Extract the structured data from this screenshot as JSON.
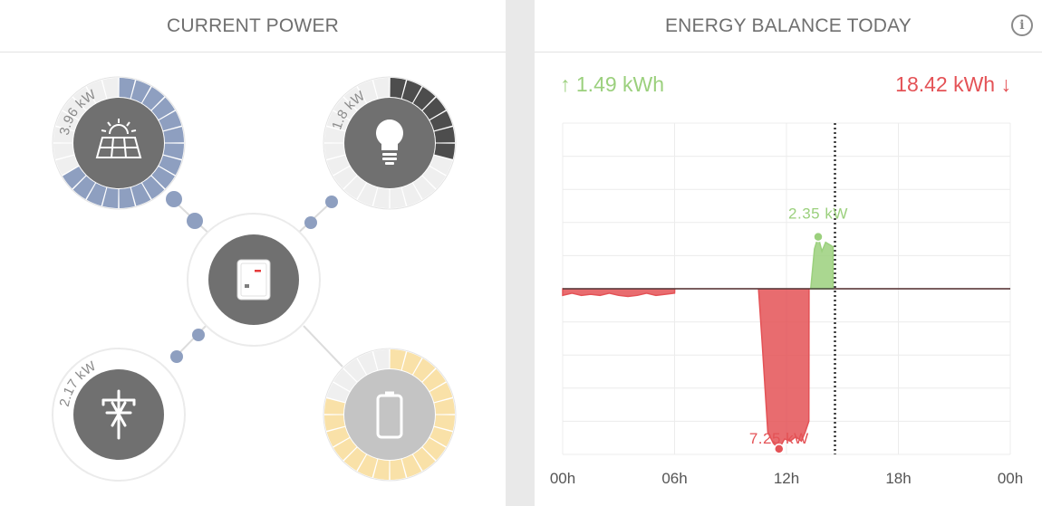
{
  "current_power": {
    "title": "CURRENT POWER",
    "solar": {
      "value_label": "3.96 kW",
      "fraction": 0.66,
      "ring_color": "#8e9fc0",
      "icon": "solar-panel-icon"
    },
    "consumption": {
      "value_label": "1.8 kW",
      "fraction": 0.3,
      "ring_color": "#4d4d4d",
      "icon": "lightbulb-icon"
    },
    "grid": {
      "value_label": "2.17 kW",
      "icon": "power-pylon-icon"
    },
    "battery": {
      "value_label": "",
      "fraction": 0.8,
      "ring_color": "#f9e1a8",
      "icon": "battery-icon"
    },
    "inverter": {
      "icon": "inverter-icon"
    }
  },
  "energy_balance": {
    "title": "ENERGY BALANCE TODAY",
    "info_label": "i",
    "feed_in_label": "↑ 1.49 kWh",
    "purchased_label": "18.42 kWh ↓",
    "colors": {
      "feed_in": "#9bd07d",
      "purchase": "#e45256"
    }
  },
  "chart_data": {
    "type": "area",
    "x_ticks": [
      "00h",
      "06h",
      "12h",
      "18h",
      "00h"
    ],
    "xlim": [
      0,
      24
    ],
    "ylim": [
      -7.5,
      7.5
    ],
    "current_time": 14.6,
    "annotations": [
      {
        "label": "2.35 kW",
        "x": 13.7,
        "y": 2.35
      },
      {
        "label": "7.25 kW",
        "x": 11.6,
        "y": -7.25
      }
    ],
    "series": [
      {
        "x": [
          0,
          0.5,
          1,
          1.5,
          2,
          2.5,
          3,
          3.5,
          4,
          4.5,
          5,
          5.5,
          6,
          6.01,
          10.5,
          10.7,
          11,
          11.3,
          11.6,
          11.9,
          12.2,
          12.5,
          12.8,
          13,
          13.2,
          13.21,
          24
        ],
        "y": [
          -0.3,
          -0.2,
          -0.3,
          -0.25,
          -0.3,
          -0.2,
          -0.3,
          -0.35,
          -0.3,
          -0.2,
          -0.3,
          -0.25,
          -0.2,
          0,
          0,
          -2.5,
          -6.5,
          -7.0,
          -7.25,
          -6.8,
          -6.9,
          -6.7,
          -6.9,
          -6.5,
          -6.0,
          0,
          0
        ]
      },
      {
        "x": [
          13.3,
          13.5,
          13.7,
          13.9,
          14.1,
          14.3,
          14.5
        ],
        "y": [
          0,
          1.8,
          2.35,
          1.7,
          2.1,
          2.0,
          1.9
        ]
      }
    ]
  }
}
